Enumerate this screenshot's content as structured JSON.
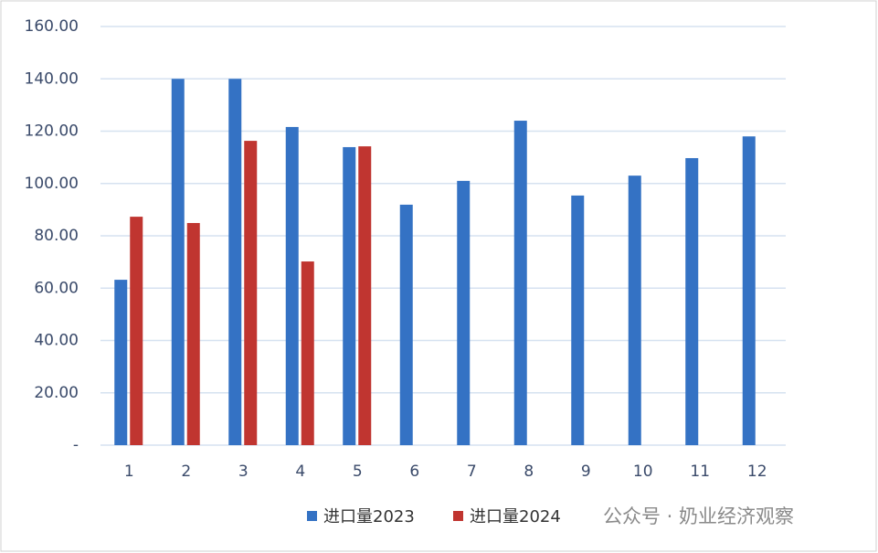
{
  "chart_data": {
    "type": "bar",
    "categories": [
      "1",
      "2",
      "3",
      "4",
      "5",
      "6",
      "7",
      "8",
      "9",
      "10",
      "11",
      "12"
    ],
    "series": [
      {
        "name": "进口量2023",
        "color": "#3472c4",
        "values": [
          63.2,
          140,
          140,
          121.6,
          113.9,
          91.9,
          101,
          124,
          95.4,
          103,
          109.7,
          118
        ]
      },
      {
        "name": "进口量2024",
        "color": "#c03530",
        "values": [
          87.3,
          84.9,
          116.3,
          70.2,
          114.2,
          null,
          null,
          null,
          null,
          null,
          null,
          null
        ]
      }
    ],
    "ylim": [
      0,
      160
    ],
    "yticks": [
      {
        "value": 0,
        "label": "-"
      },
      {
        "value": 20,
        "label": "20.00"
      },
      {
        "value": 40,
        "label": "40.00"
      },
      {
        "value": 60,
        "label": "60.00"
      },
      {
        "value": 80,
        "label": "80.00"
      },
      {
        "value": 100,
        "label": "100.00"
      },
      {
        "value": 120,
        "label": "120.00"
      },
      {
        "value": 140,
        "label": "140.00"
      },
      {
        "value": 160,
        "label": "160.00"
      }
    ],
    "grid": true,
    "legend": "bottom",
    "annotation": "公众号 · 奶业经济观察"
  }
}
